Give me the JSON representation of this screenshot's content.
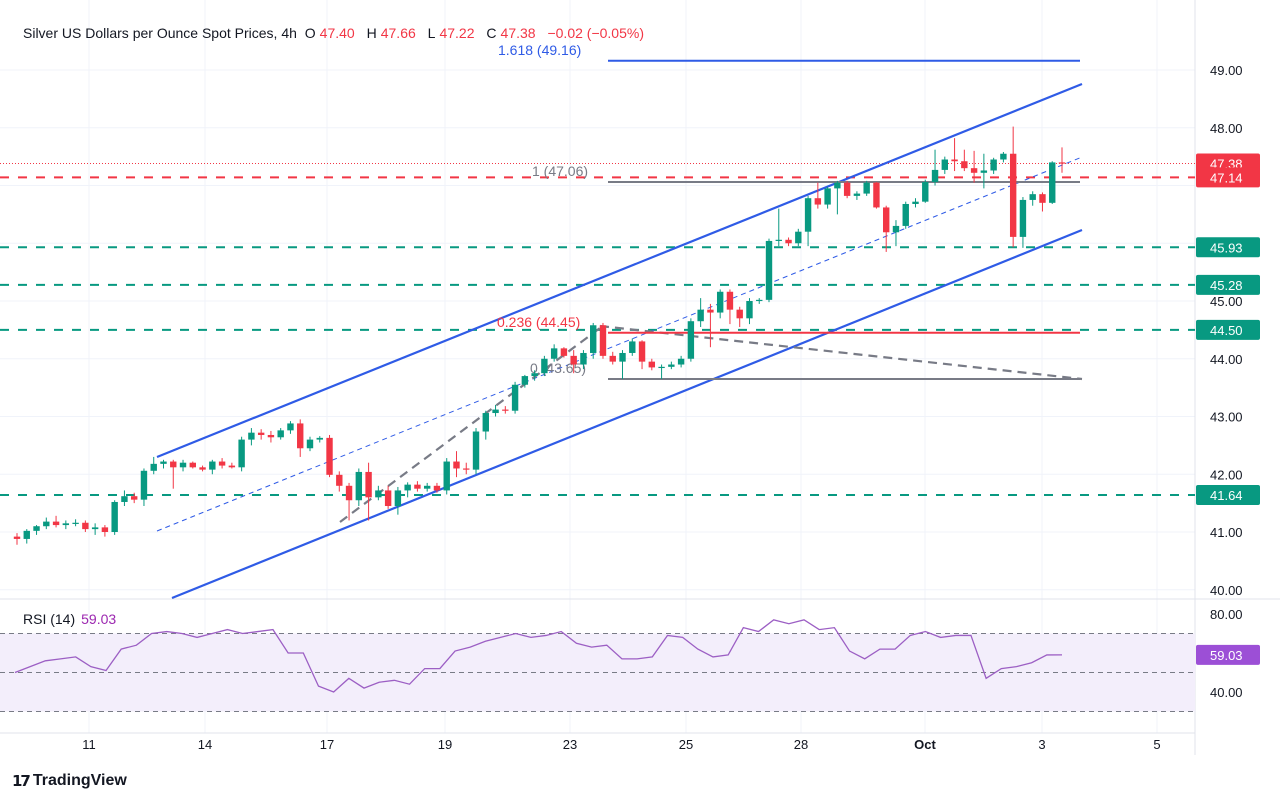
{
  "header": {
    "symbol": "Silver US Dollars per Ounce Spot Prices, 4h",
    "open_label": "O",
    "open": "47.40",
    "high_label": "H",
    "high": "47.66",
    "low_label": "L",
    "low": "47.22",
    "close_label": "C",
    "close": "47.38",
    "change": "−0.02 (−0.05%)"
  },
  "colors": {
    "up": "#089981",
    "down": "#f23645",
    "channel": "#2f5be6",
    "rsi": "#9c5fc4",
    "fib_gray": "#787b86"
  },
  "chart_data": [
    {
      "type": "candlestick",
      "title": "Silver US Dollars per Ounce Spot Prices, 4h",
      "ylim": [
        39.8,
        49.4
      ],
      "price_ticks": [
        "49.00",
        "48.00",
        "45.00",
        "44.00",
        "43.00",
        "42.00",
        "41.00",
        "40.00"
      ],
      "x_tick_labels": [
        "11",
        "14",
        "17",
        "19",
        "23",
        "25",
        "28",
        "Oct",
        "3",
        "5"
      ],
      "grid": true,
      "ohlc": [
        [
          40.92,
          40.98,
          40.78,
          40.88
        ],
        [
          40.88,
          41.05,
          40.8,
          41.02
        ],
        [
          41.02,
          41.12,
          40.95,
          41.1
        ],
        [
          41.1,
          41.25,
          41.05,
          41.18
        ],
        [
          41.18,
          41.28,
          41.08,
          41.12
        ],
        [
          41.12,
          41.2,
          41.05,
          41.15
        ],
        [
          41.15,
          41.22,
          41.1,
          41.16
        ],
        [
          41.16,
          41.2,
          41.0,
          41.05
        ],
        [
          41.05,
          41.15,
          40.95,
          41.08
        ],
        [
          41.08,
          41.12,
          40.92,
          41.0
        ],
        [
          41.0,
          41.55,
          40.95,
          41.52
        ],
        [
          41.52,
          41.72,
          41.45,
          41.62
        ],
        [
          41.62,
          41.68,
          41.5,
          41.56
        ],
        [
          41.56,
          42.1,
          41.45,
          42.06
        ],
        [
          42.06,
          42.3,
          42.0,
          42.18
        ],
        [
          42.18,
          42.25,
          42.1,
          42.22
        ],
        [
          42.22,
          42.25,
          41.75,
          42.12
        ],
        [
          42.12,
          42.25,
          42.05,
          42.2
        ],
        [
          42.2,
          42.22,
          42.1,
          42.12
        ],
        [
          42.12,
          42.15,
          42.05,
          42.08
        ],
        [
          42.08,
          42.25,
          42.0,
          42.22
        ],
        [
          42.22,
          42.28,
          42.1,
          42.15
        ],
        [
          42.15,
          42.2,
          42.1,
          42.12
        ],
        [
          42.12,
          42.65,
          42.05,
          42.6
        ],
        [
          42.6,
          42.8,
          42.5,
          42.72
        ],
        [
          42.72,
          42.78,
          42.6,
          42.68
        ],
        [
          42.68,
          42.75,
          42.55,
          42.64
        ],
        [
          42.64,
          42.8,
          42.6,
          42.76
        ],
        [
          42.76,
          42.92,
          42.7,
          42.88
        ],
        [
          42.88,
          42.95,
          42.3,
          42.45
        ],
        [
          42.45,
          42.65,
          42.4,
          42.6
        ],
        [
          42.6,
          42.66,
          42.55,
          42.63
        ],
        [
          42.63,
          42.68,
          41.95,
          41.99
        ],
        [
          41.99,
          42.05,
          41.7,
          41.8
        ],
        [
          41.8,
          41.85,
          41.2,
          41.55
        ],
        [
          41.55,
          42.1,
          41.45,
          42.04
        ],
        [
          42.04,
          42.2,
          41.2,
          41.6
        ],
        [
          41.6,
          41.8,
          41.55,
          41.72
        ],
        [
          41.72,
          41.8,
          41.4,
          41.45
        ],
        [
          41.45,
          41.78,
          41.3,
          41.72
        ],
        [
          41.72,
          41.86,
          41.6,
          41.82
        ],
        [
          41.82,
          41.88,
          41.7,
          41.75
        ],
        [
          41.75,
          41.85,
          41.7,
          41.8
        ],
        [
          41.8,
          41.85,
          41.68,
          41.72
        ],
        [
          41.72,
          42.28,
          41.65,
          42.22
        ],
        [
          42.22,
          42.4,
          41.95,
          42.1
        ],
        [
          42.1,
          42.2,
          42.0,
          42.08
        ],
        [
          42.08,
          42.8,
          42.0,
          42.74
        ],
        [
          42.74,
          43.1,
          42.6,
          43.06
        ],
        [
          43.06,
          43.2,
          43.0,
          43.12
        ],
        [
          43.12,
          43.18,
          43.05,
          43.1
        ],
        [
          43.1,
          43.6,
          43.05,
          43.55
        ],
        [
          43.55,
          43.72,
          43.5,
          43.7
        ],
        [
          43.7,
          43.8,
          43.62,
          43.75
        ],
        [
          43.75,
          44.05,
          43.7,
          44.0
        ],
        [
          44.0,
          44.25,
          43.95,
          44.18
        ],
        [
          44.18,
          44.2,
          44.02,
          44.05
        ],
        [
          44.05,
          44.15,
          43.75,
          43.9
        ],
        [
          43.9,
          44.15,
          43.82,
          44.1
        ],
        [
          44.1,
          44.62,
          44.0,
          44.58
        ],
        [
          44.58,
          44.62,
          44.0,
          44.05
        ],
        [
          44.05,
          44.12,
          43.9,
          43.95
        ],
        [
          43.95,
          44.15,
          43.65,
          44.1
        ],
        [
          44.1,
          44.35,
          44.05,
          44.3
        ],
        [
          44.3,
          44.32,
          43.82,
          43.95
        ],
        [
          43.95,
          44.0,
          43.8,
          43.85
        ],
        [
          43.85,
          43.9,
          43.65,
          43.86
        ],
        [
          43.86,
          43.95,
          43.82,
          43.9
        ],
        [
          43.9,
          44.05,
          43.85,
          44.0
        ],
        [
          44.0,
          44.7,
          43.95,
          44.65
        ],
        [
          44.65,
          45.05,
          44.55,
          44.85
        ],
        [
          44.85,
          44.95,
          44.2,
          44.8
        ],
        [
          44.8,
          45.2,
          44.7,
          45.16
        ],
        [
          45.16,
          45.2,
          44.6,
          44.85
        ],
        [
          44.85,
          44.9,
          44.55,
          44.7
        ],
        [
          44.7,
          45.05,
          44.6,
          45.0
        ],
        [
          45.0,
          45.05,
          44.95,
          45.02
        ],
        [
          45.02,
          46.08,
          44.98,
          46.04
        ],
        [
          46.04,
          46.6,
          45.95,
          46.06
        ],
        [
          46.06,
          46.1,
          45.95,
          46.0
        ],
        [
          46.0,
          46.25,
          45.95,
          46.2
        ],
        [
          46.2,
          46.82,
          45.95,
          46.78
        ],
        [
          46.78,
          47.05,
          46.6,
          46.67
        ],
        [
          46.67,
          46.98,
          46.6,
          46.95
        ],
        [
          46.95,
          47.08,
          46.5,
          47.05
        ],
        [
          47.05,
          47.08,
          46.78,
          46.82
        ],
        [
          46.82,
          46.9,
          46.75,
          46.86
        ],
        [
          46.86,
          47.08,
          46.82,
          47.05
        ],
        [
          47.05,
          47.06,
          46.6,
          46.62
        ],
        [
          46.62,
          46.65,
          45.85,
          46.19
        ],
        [
          46.19,
          46.4,
          45.95,
          46.3
        ],
        [
          46.3,
          46.72,
          46.25,
          46.68
        ],
        [
          46.68,
          46.78,
          46.62,
          46.72
        ],
        [
          46.72,
          47.1,
          46.7,
          47.06
        ],
        [
          47.06,
          47.62,
          47.0,
          47.27
        ],
        [
          47.27,
          47.5,
          47.2,
          47.45
        ],
        [
          47.45,
          47.82,
          47.25,
          47.42
        ],
        [
          47.42,
          47.62,
          47.25,
          47.3
        ],
        [
          47.3,
          47.6,
          47.05,
          47.22
        ],
        [
          47.22,
          47.55,
          46.95,
          47.26
        ],
        [
          47.26,
          47.48,
          47.2,
          47.45
        ],
        [
          47.45,
          47.58,
          47.4,
          47.55
        ],
        [
          47.55,
          48.02,
          45.93,
          46.11
        ],
        [
          46.11,
          46.8,
          45.92,
          46.75
        ],
        [
          46.75,
          46.9,
          46.65,
          46.85
        ],
        [
          46.85,
          46.88,
          46.55,
          46.7
        ],
        [
          46.7,
          47.42,
          46.68,
          47.4
        ],
        [
          47.4,
          47.66,
          47.22,
          47.38
        ]
      ],
      "horizontal_levels": [
        {
          "value": 47.38,
          "label": "47.38",
          "style": "dotted",
          "color": "#f23645"
        },
        {
          "value": 47.14,
          "label": "47.14",
          "style": "dashed",
          "color": "#f23645"
        },
        {
          "value": 45.93,
          "label": "45.93",
          "style": "dashed",
          "color": "#089981"
        },
        {
          "value": 45.28,
          "label": "45.28",
          "style": "dashed",
          "color": "#089981"
        },
        {
          "value": 44.5,
          "label": "44.50",
          "style": "dashed",
          "color": "#089981"
        },
        {
          "value": 41.64,
          "label": "41.64",
          "style": "dashed",
          "color": "#089981"
        }
      ],
      "fibonacci": [
        {
          "ratio": "1.618",
          "value": 49.16,
          "label": "1.618 (49.16)",
          "color": "#2f5be6"
        },
        {
          "ratio": "1",
          "value": 47.06,
          "label": "1 (47.06)",
          "color": "#787b86"
        },
        {
          "ratio": "0.236",
          "value": 44.45,
          "label": "0.236 (44.45)",
          "color": "#f23645"
        },
        {
          "ratio": "0",
          "value": 43.65,
          "label": "0 (43.65)",
          "color": "#787b86"
        }
      ]
    },
    {
      "type": "line",
      "title": "RSI (14)",
      "last_value": "59.03",
      "ylim": [
        20,
        88
      ],
      "ticks": [
        "80.00",
        "40.00"
      ],
      "bands": [
        70,
        50,
        30
      ],
      "values": [
        50,
        53,
        56,
        57,
        58,
        53,
        51,
        62,
        64,
        70,
        71,
        70,
        68,
        70,
        72,
        70,
        71,
        72,
        60,
        60,
        43,
        40,
        47,
        42,
        45,
        46,
        44,
        52,
        52,
        61,
        63,
        66,
        68,
        70,
        68,
        69,
        71,
        65,
        63,
        64,
        57,
        57,
        58,
        69,
        68,
        62,
        58,
        59,
        73,
        71,
        77,
        75,
        77,
        72,
        73,
        61,
        57,
        62,
        62,
        69,
        71,
        68,
        69,
        69,
        47,
        52,
        53,
        55,
        59,
        59.03
      ]
    }
  ],
  "branding": {
    "logo_text": "TradingView"
  }
}
